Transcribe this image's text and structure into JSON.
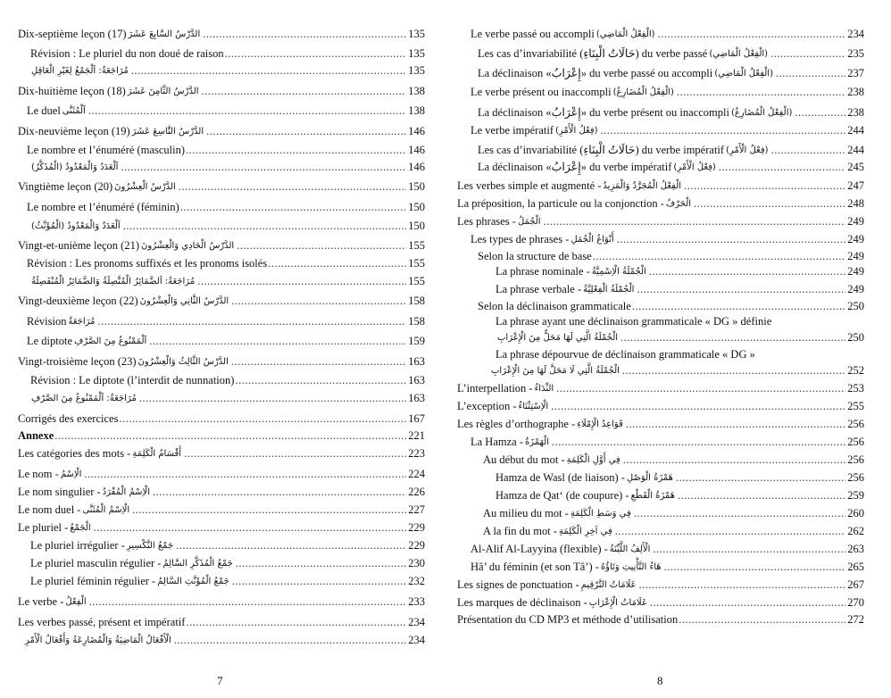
{
  "pages": [
    {
      "number": "7",
      "entries": [
        {
          "text": "Dix-septième leçon (17)",
          "arabic": "الدَّرْسُ السَّابِعَ عَشَرَ",
          "page": "135"
        },
        {
          "text": "Révision : Le pluriel du non doué de raison",
          "arabic": "",
          "page": "135"
        },
        {
          "text": "",
          "arabic": "مُرَاجَعَةٌ: اَلْجَمْعُ لِغَيْرِ الْعَاقِلِ",
          "page": "135"
        },
        {
          "text": "Dix-huitième leçon (18)",
          "arabic": "الدَّرْسُ الثَّامِنَ عَشَرَ",
          "page": "138"
        },
        {
          "text": "Le duel",
          "arabic": "اَلْمُثَنَّى",
          "page": "138"
        },
        {
          "text": "Dix-neuvième leçon (19)",
          "arabic": "الدَّرْسُ التَّاسِعَ عَشَرَ",
          "page": "146"
        },
        {
          "text": "Le nombre et l’énuméré (masculin)",
          "arabic": "",
          "page": "146"
        },
        {
          "text": "",
          "arabic": "اَلْعَدَدُ وَالْمَعْدُودُ (الْمُذَكَّرُ)",
          "page": "146"
        },
        {
          "text": "Vingtième leçon (20)",
          "arabic": "الدَّرْسُ الْعِشْرُونَ",
          "page": "150"
        },
        {
          "text": "Le nombre et l’énuméré (féminin)",
          "arabic": "",
          "page": "150"
        },
        {
          "text": "",
          "arabic": "اَلْعَدَدُ وَالْمَعْدُودُ (الْمُؤَنَّثُ)",
          "page": "150"
        },
        {
          "text": "Vingt-et-unième leçon (21)",
          "arabic": "الدَّرْسُ الْحَادِي وَالْعِشْرُونَ",
          "page": "155"
        },
        {
          "text": "Révision : Les pronoms suffixés et les pronoms isolés",
          "arabic": "",
          "page": "155"
        },
        {
          "text": "",
          "arabic": "مُرَاجَعَةٌ: اَلضَّمَائِرُ الْمُتَّصِلَةُ وَالضَّمَائِرُ الْمُنْفَصِلَةُ",
          "page": "155"
        },
        {
          "text": "Vingt-deuxième leçon (22)",
          "arabic": "الدَّرْسُ الثَّانِي وَالْعِشْرُونَ",
          "page": "158"
        },
        {
          "text": "Révision",
          "arabic": "مُرَاجَعَةٌ",
          "page": "158"
        },
        {
          "text": "Le diptote",
          "arabic": "اَلْمَمْنُوعُ مِنَ الصَّرْفِ",
          "page": "159"
        },
        {
          "text": "Vingt-troisième leçon (23)",
          "arabic": "الدَّرْسُ الثَّالِثُ وَالْعِشْرُونَ",
          "page": "163"
        },
        {
          "text": "Révision : Le diptote (l’interdit de nunnation)",
          "arabic": "",
          "page": "163"
        },
        {
          "text": "",
          "arabic": "مُرَاجَعَةٌ: اَلْمَمْنُوعُ مِنَ الصَّرْفِ",
          "page": "163"
        },
        {
          "text": "Corrigés des exercices",
          "arabic": "",
          "page": "167"
        },
        {
          "text": "Annexe",
          "arabic": "",
          "page": "221",
          "bold": true
        },
        {
          "text": "Les catégories des mots -",
          "arabic": "أَقْسَامُ الْكَلِمَةِ",
          "page": "223"
        },
        {
          "text": "Le nom -",
          "arabic": "الْاِسْمُ",
          "page": "224"
        },
        {
          "text": "Le nom singulier -",
          "arabic": "الْاِسْمُ الْمُفْرَدُ",
          "page": "226"
        },
        {
          "text": "Le nom duel -",
          "arabic": "الْاِسْمُ الْمُثَنَّى",
          "page": "227"
        },
        {
          "text": "Le pluriel -",
          "arabic": "الْجَمْعُ",
          "page": "229"
        },
        {
          "text": "Le pluriel irrégulier -",
          "arabic": "جَمْعُ التَّكْسِيرِ",
          "page": "229"
        },
        {
          "text": "Le pluriel masculin régulier -",
          "arabic": "جَمْعُ الْمُذَكَّرِ السَّالِمُ",
          "page": "230"
        },
        {
          "text": "Le pluriel féminin régulier -",
          "arabic": "جَمْعُ الْمُؤَنَّثِ السَّالِمُ",
          "page": "232"
        },
        {
          "text": "Le verbe -",
          "arabic": "الْفِعْلُ",
          "page": "233"
        },
        {
          "text": "Les verbes passé, présent et impératif",
          "arabic": "",
          "page": "234"
        },
        {
          "text": "",
          "arabic": "الْأَفْعَالُ الْمَاضِيَةُ وَالْمُضَارِعَةُ وَأَفْعَالُ الْأَمْرِ",
          "page": "234"
        }
      ]
    },
    {
      "number": "8",
      "entries": [
        {
          "text": "Le verbe passé ou accompli",
          "arabic": "(الْفِعْلُ الْمَاضِي)",
          "page": "234"
        },
        {
          "text": "Les cas d’invariabilité (حَالَاتُ الْبِنَاءِ) du verbe passé",
          "arabic": "(الْفِعْلُ الْمَاضِي)",
          "page": "235"
        },
        {
          "text": "La déclinaison «إِعْرَابُ» du verbe passé ou accompli",
          "arabic": "(الْفِعْلُ الْمَاضِي)",
          "page": "237"
        },
        {
          "text": "Le verbe présent ou inaccompli",
          "arabic": "(الْفِعْلُ الْمُضَارِعُ)",
          "page": "238"
        },
        {
          "text": "La déclinaison «إِعْرَابُ» du verbe présent ou inaccompli",
          "arabic": "(الْفِعْلُ الْمُضَارِعُ)",
          "page": "238"
        },
        {
          "text": "Le verbe impératif",
          "arabic": "(فِعْلُ الْأَمْرِ)",
          "page": "244"
        },
        {
          "text": "Les cas d’invariabilité (حَالَاتُ الْبِنَاءِ) du verbe impératif",
          "arabic": "(فِعْلُ الْأَمْرِ)",
          "page": "244"
        },
        {
          "text": "La déclinaison «إِعْرَابُ» du verbe impératif",
          "arabic": "(فِعْلُ الْأَمْرِ)",
          "page": "245"
        },
        {
          "text": "Les verbes simple et augmenté -",
          "arabic": "الْفِعْلُ الْمُجَرَّدُ وَالْمَزِيدُ",
          "page": "247"
        },
        {
          "text": "La préposition, la particule ou la conjonction -",
          "arabic": "الْحَرْفُ",
          "page": "248"
        },
        {
          "text": "Les phrases -",
          "arabic": "الْجُمَلُ",
          "page": "249"
        },
        {
          "text": "Les types de phrases -",
          "arabic": "أَنْوَاعُ الْجُمَلِ",
          "page": "249"
        },
        {
          "text": "Selon la structure de base",
          "arabic": "",
          "page": "249"
        },
        {
          "text": "La phrase nominale -",
          "arabic": "الْجُمْلَةُ الْاِسْمِيَّةُ",
          "page": "249"
        },
        {
          "text": "La phrase verbale -",
          "arabic": "الْجُمْلَةُ الْفِعْلِيَّةُ",
          "page": "249"
        },
        {
          "text": "Selon la déclinaison grammaticale",
          "arabic": "",
          "page": "250"
        },
        {
          "text": "La phrase ayant une déclinaison grammaticale « DG » définie",
          "arabic": "",
          "page": ""
        },
        {
          "text": "",
          "arabic": "الْجُمْلَةُ الَّتِي لَهَا مَحَلٌّ مِنَ الْإِعْرَابِ",
          "page": "250"
        },
        {
          "text": "La phrase dépourvue de déclinaison grammaticale « DG »",
          "arabic": "",
          "page": ""
        },
        {
          "text": "",
          "arabic": "الْجُمْلَةُ الَّتِي لَا مَحَلَّ لَهَا مِنَ الْإِعْرَابِ",
          "page": "252"
        },
        {
          "text": "L’interpellation -",
          "arabic": "النِّدَاءُ",
          "page": "253"
        },
        {
          "text": "L’exception -",
          "arabic": "الْاِسْتِثْنَاءُ",
          "page": "255"
        },
        {
          "text": "Les règles d’orthographe -",
          "arabic": "قَوَاعِدُ الْإِمْلَاءِ",
          "page": "256"
        },
        {
          "text": "La Hamza -",
          "arabic": "الْهَمْزَةُ",
          "page": "256"
        },
        {
          "text": "Au début du mot -",
          "arabic": "فِي أَوَّلِ الْكَلِمَةِ",
          "page": "256"
        },
        {
          "text": "Hamza de Wasl (de liaison) -",
          "arabic": "هَمْزَةُ الْوَصْلِ",
          "page": "256"
        },
        {
          "text": "Hamza de Qat‘ (de coupure) -",
          "arabic": "هَمْزَةُ الْقَطْعِ",
          "page": "259"
        },
        {
          "text": "Au milieu du mot -",
          "arabic": "فِي وَسَطِ الْكَلِمَةِ",
          "page": "260"
        },
        {
          "text": "A la fin du mot -",
          "arabic": "فِي آخِرِ الْكَلِمَةِ",
          "page": "262"
        },
        {
          "text": "Al-Alif Al-Layyina (flexible) -",
          "arabic": "الْأَلِفُ اللَّيِّنَةُ",
          "page": "263"
        },
        {
          "text": "Hâ’ du féminin (et son Tâ’) -",
          "arabic": "هَاءُ التَّأْنِيثِ وَتَاؤُهُ",
          "page": "265"
        },
        {
          "text": "Les signes de ponctuation -",
          "arabic": "عَلَامَاتُ التَّرْقِيمِ",
          "page": "267"
        },
        {
          "text": "Les marques de déclinaison -",
          "arabic": "عَلَامَاتُ الْإِعْرَابِ",
          "page": "270"
        },
        {
          "text": "Présentation du CD MP3 et méthode d’utilisation",
          "arabic": "",
          "page": "272"
        }
      ]
    }
  ]
}
